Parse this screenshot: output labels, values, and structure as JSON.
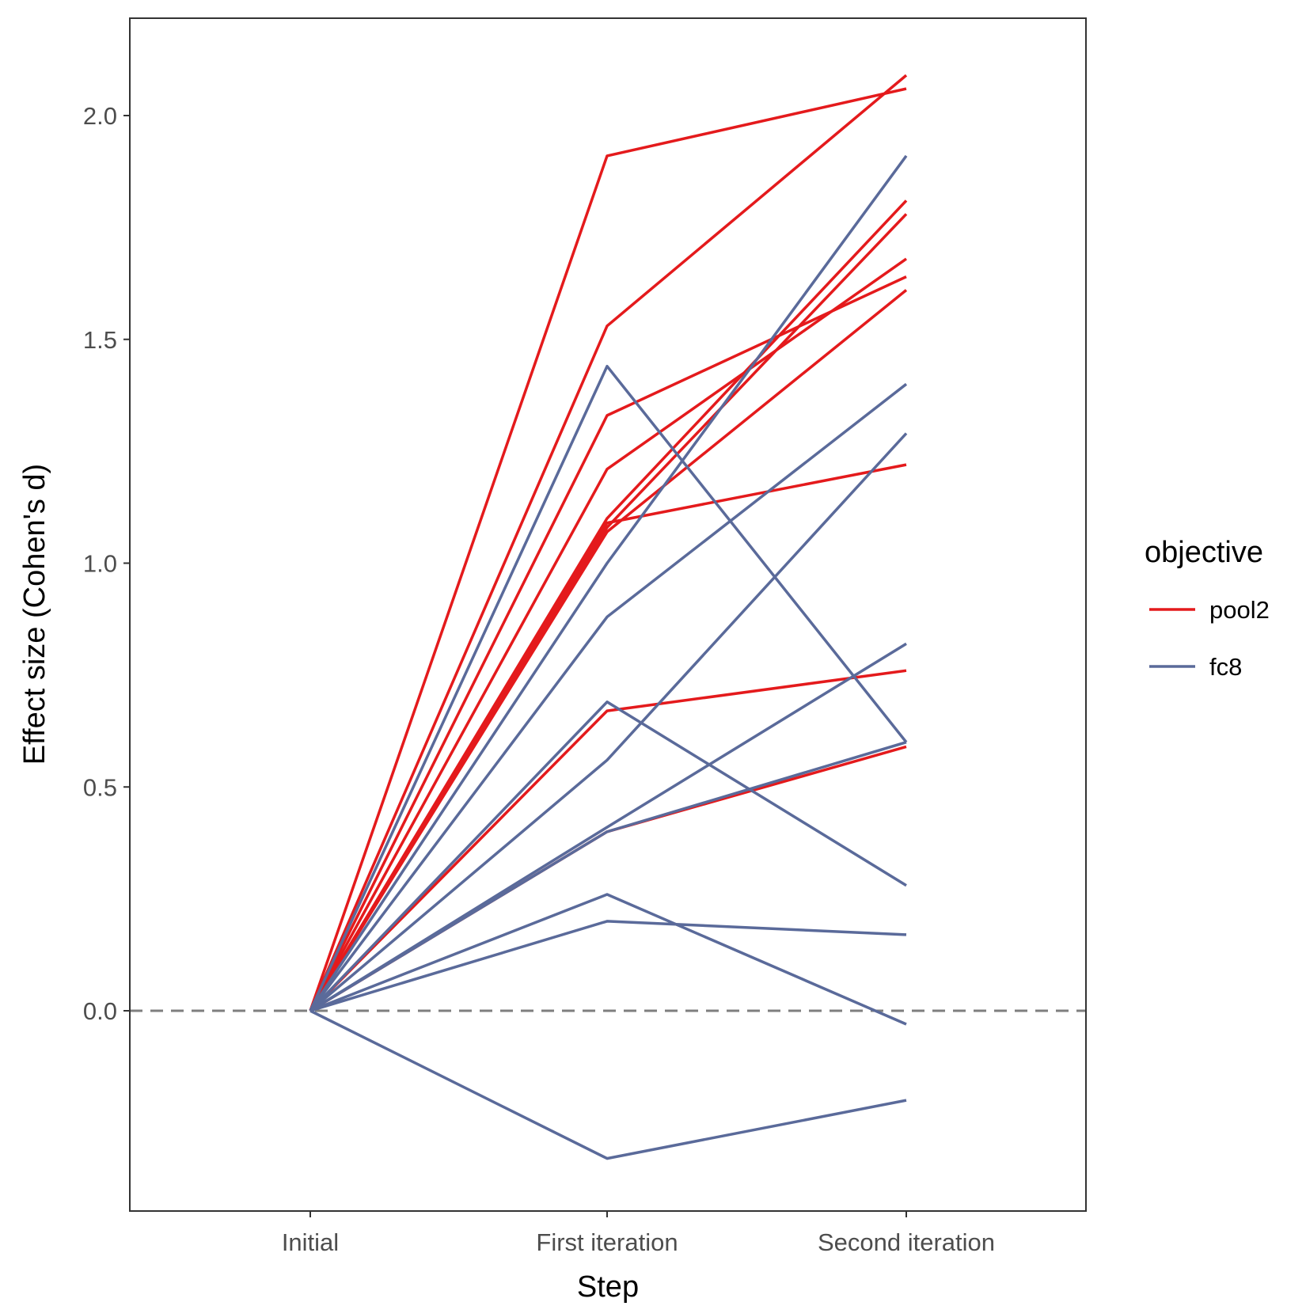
{
  "chart_data": {
    "type": "line",
    "xlabel": "Step",
    "ylabel": "Effect size (Cohen's d)",
    "categories": [
      "Initial",
      "First iteration",
      "Second iteration"
    ],
    "ylim": [
      -0.44,
      2.22
    ],
    "yticks": [
      0.0,
      0.5,
      1.0,
      1.5,
      2.0
    ],
    "ytick_labels": [
      "0.0",
      "0.5",
      "1.0",
      "1.5",
      "2.0"
    ],
    "grid": false,
    "reference_line": {
      "y": 0,
      "style": "dashed",
      "color": "#7f7f7f"
    },
    "legend": {
      "title": "objective",
      "placement": "right",
      "entries": [
        {
          "label": "pool2",
          "color": "#e41a1c"
        },
        {
          "label": "fc8",
          "color": "#5a6a9a"
        }
      ]
    },
    "series": [
      {
        "group": "pool2",
        "values": [
          0,
          1.91,
          2.06
        ]
      },
      {
        "group": "pool2",
        "values": [
          0,
          1.53,
          2.09
        ]
      },
      {
        "group": "pool2",
        "values": [
          0,
          1.33,
          1.64
        ]
      },
      {
        "group": "pool2",
        "values": [
          0,
          1.21,
          1.68
        ]
      },
      {
        "group": "pool2",
        "values": [
          0,
          1.1,
          1.81
        ]
      },
      {
        "group": "pool2",
        "values": [
          0,
          1.08,
          1.78
        ]
      },
      {
        "group": "pool2",
        "values": [
          0,
          1.07,
          1.61
        ]
      },
      {
        "group": "pool2",
        "values": [
          0,
          1.09,
          1.22
        ]
      },
      {
        "group": "pool2",
        "values": [
          0,
          0.67,
          0.76
        ]
      },
      {
        "group": "pool2",
        "values": [
          0,
          0.4,
          0.59
        ]
      },
      {
        "group": "fc8",
        "values": [
          0,
          1.44,
          0.6
        ]
      },
      {
        "group": "fc8",
        "values": [
          0,
          1.0,
          1.91
        ]
      },
      {
        "group": "fc8",
        "values": [
          0,
          0.88,
          1.4
        ]
      },
      {
        "group": "fc8",
        "values": [
          0,
          0.69,
          0.28
        ]
      },
      {
        "group": "fc8",
        "values": [
          0,
          0.56,
          1.29
        ]
      },
      {
        "group": "fc8",
        "values": [
          0,
          0.41,
          0.82
        ]
      },
      {
        "group": "fc8",
        "values": [
          0,
          0.4,
          0.6
        ]
      },
      {
        "group": "fc8",
        "values": [
          0,
          0.26,
          -0.03
        ]
      },
      {
        "group": "fc8",
        "values": [
          0,
          0.2,
          0.17
        ]
      },
      {
        "group": "fc8",
        "values": [
          0,
          -0.33,
          -0.2
        ]
      }
    ]
  }
}
